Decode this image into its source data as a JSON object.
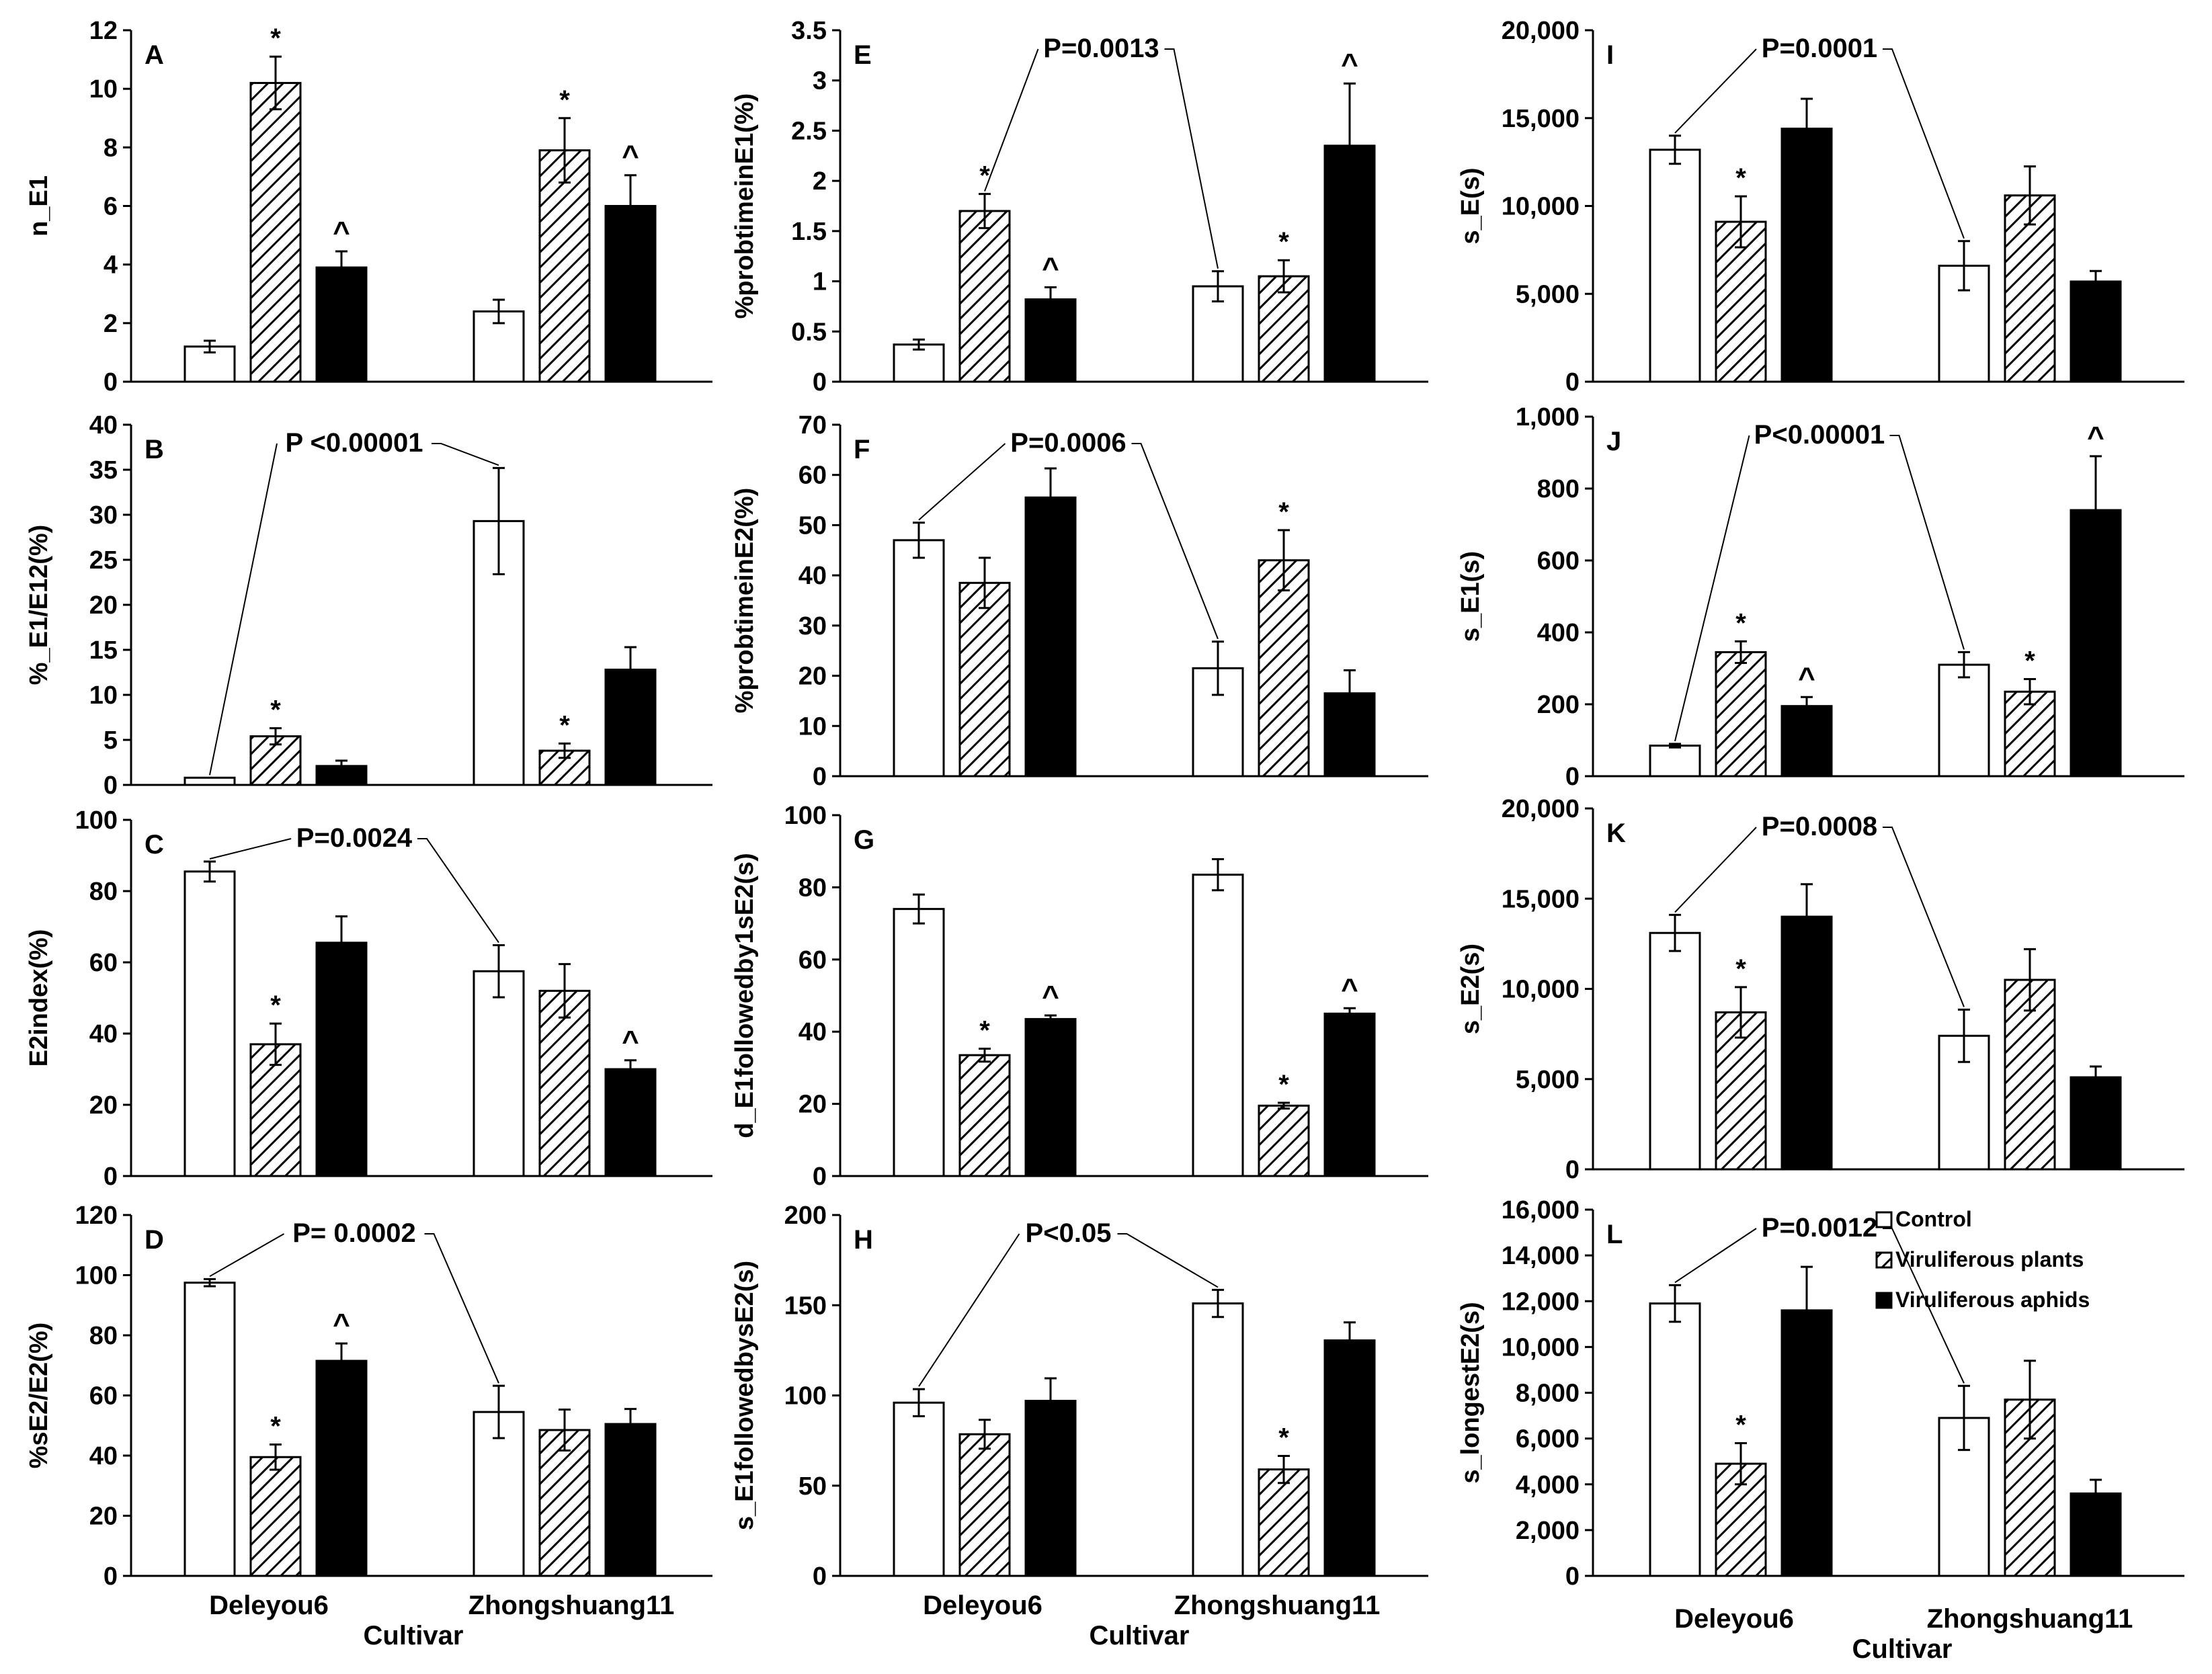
{
  "legend": {
    "items": [
      {
        "label": "Control",
        "style": "open"
      },
      {
        "label": "Viruliferous plants",
        "style": "hatched"
      },
      {
        "label": "Viruliferous aphids",
        "style": "solid"
      }
    ]
  },
  "shared": {
    "categories": [
      "Deleyou6",
      "Zhongshuang11"
    ],
    "xlabel": "Cultivar",
    "series": [
      "Control",
      "Viruliferous plants",
      "Viruliferous aphids"
    ]
  },
  "chart_data": [
    {
      "id": "A",
      "type": "bar",
      "panel_label": "A",
      "ylabel": "n_E1",
      "ylim": [
        0,
        12
      ],
      "yticks": [
        "0",
        "2",
        "4",
        "6",
        "8",
        "10",
        "12"
      ],
      "categories": [
        "Deleyou6",
        "Zhongshuang11"
      ],
      "series": [
        {
          "name": "Control",
          "values": [
            1.2,
            2.4
          ],
          "errors": [
            0.2,
            0.4
          ],
          "marks": [
            "",
            ""
          ]
        },
        {
          "name": "Viruliferous plants",
          "values": [
            10.2,
            7.9
          ],
          "errors": [
            0.9,
            1.1
          ],
          "marks": [
            "*",
            "*"
          ]
        },
        {
          "name": "Viruliferous aphids",
          "values": [
            3.9,
            6.0
          ],
          "errors": [
            0.55,
            1.05
          ],
          "marks": [
            "^",
            "^"
          ]
        }
      ],
      "pvalue": null
    },
    {
      "id": "B",
      "type": "bar",
      "panel_label": "B",
      "ylabel": "%_E1/E12(%)",
      "ylim": [
        0,
        40
      ],
      "yticks": [
        "0",
        "5",
        "10",
        "15",
        "20",
        "25",
        "30",
        "35",
        "40"
      ],
      "categories": [
        "Deleyou6",
        "Zhongshuang11"
      ],
      "series": [
        {
          "name": "Control",
          "values": [
            0.8,
            29.3
          ],
          "errors": [
            0,
            5.9
          ],
          "marks": [
            "",
            ""
          ]
        },
        {
          "name": "Viruliferous plants",
          "values": [
            5.4,
            3.8
          ],
          "errors": [
            0.9,
            0.8
          ],
          "marks": [
            "*",
            "*"
          ]
        },
        {
          "name": "Viruliferous aphids",
          "values": [
            2.1,
            12.8
          ],
          "errors": [
            0.6,
            2.5
          ],
          "marks": [
            "",
            ""
          ]
        }
      ],
      "pvalue": "P <0.00001"
    },
    {
      "id": "C",
      "type": "bar",
      "panel_label": "C",
      "ylabel": "E2index(%)",
      "ylim": [
        0,
        100
      ],
      "yticks": [
        "0",
        "20",
        "40",
        "60",
        "80",
        "100"
      ],
      "categories": [
        "Deleyou6",
        "Zhongshuang11"
      ],
      "series": [
        {
          "name": "Control",
          "values": [
            85.5,
            57.5
          ],
          "errors": [
            2.8,
            7.3
          ],
          "marks": [
            "",
            ""
          ]
        },
        {
          "name": "Viruliferous plants",
          "values": [
            37.0,
            52.0
          ],
          "errors": [
            5.8,
            7.5
          ],
          "marks": [
            "*",
            ""
          ]
        },
        {
          "name": "Viruliferous aphids",
          "values": [
            65.5,
            30.0
          ],
          "errors": [
            7.4,
            2.5
          ],
          "marks": [
            "",
            "^"
          ]
        }
      ],
      "pvalue": "P=0.0024"
    },
    {
      "id": "D",
      "type": "bar",
      "panel_label": "D",
      "ylabel": "%sE2/E2(%)",
      "ylim": [
        0,
        120
      ],
      "yticks": [
        "0",
        "20",
        "40",
        "60",
        "80",
        "100",
        "120"
      ],
      "categories": [
        "Deleyou6",
        "Zhongshuang11"
      ],
      "series": [
        {
          "name": "Control",
          "values": [
            97.5,
            54.5
          ],
          "errors": [
            1.2,
            8.7
          ],
          "marks": [
            "",
            ""
          ]
        },
        {
          "name": "Viruliferous plants",
          "values": [
            39.5,
            48.5
          ],
          "errors": [
            4.2,
            6.8
          ],
          "marks": [
            "*",
            ""
          ]
        },
        {
          "name": "Viruliferous aphids",
          "values": [
            71.5,
            50.5
          ],
          "errors": [
            5.8,
            5.0
          ],
          "marks": [
            "^",
            ""
          ]
        }
      ],
      "pvalue": "P= 0.0002"
    },
    {
      "id": "E",
      "type": "bar",
      "panel_label": "E",
      "ylabel": "%probtimeinE1(%)",
      "ylim": [
        0,
        3.5
      ],
      "yticks": [
        "0",
        "0.5",
        "1",
        "1.5",
        "2",
        "2.5",
        "3",
        "3.5"
      ],
      "categories": [
        "Deleyou6",
        "Zhongshuang11"
      ],
      "series": [
        {
          "name": "Control",
          "values": [
            0.37,
            0.95
          ],
          "errors": [
            0.05,
            0.15
          ],
          "marks": [
            "",
            ""
          ]
        },
        {
          "name": "Viruliferous plants",
          "values": [
            1.7,
            1.05
          ],
          "errors": [
            0.17,
            0.16
          ],
          "marks": [
            "*",
            "*"
          ]
        },
        {
          "name": "Viruliferous aphids",
          "values": [
            0.82,
            2.35
          ],
          "errors": [
            0.12,
            0.62
          ],
          "marks": [
            "^",
            "^"
          ]
        }
      ],
      "pvalue": "P=0.0013"
    },
    {
      "id": "F",
      "type": "bar",
      "panel_label": "F",
      "ylabel": "%probtimeinE2(%)",
      "ylim": [
        0,
        70
      ],
      "yticks": [
        "0",
        "10",
        "20",
        "30",
        "40",
        "50",
        "60",
        "70"
      ],
      "categories": [
        "Deleyou6",
        "Zhongshuang11"
      ],
      "series": [
        {
          "name": "Control",
          "values": [
            47.0,
            21.5
          ],
          "errors": [
            3.5,
            5.3
          ],
          "marks": [
            "",
            ""
          ]
        },
        {
          "name": "Viruliferous plants",
          "values": [
            38.5,
            43.0
          ],
          "errors": [
            5.0,
            6.0
          ],
          "marks": [
            "",
            "*"
          ]
        },
        {
          "name": "Viruliferous aphids",
          "values": [
            55.5,
            16.5
          ],
          "errors": [
            5.8,
            4.6
          ],
          "marks": [
            "",
            ""
          ]
        }
      ],
      "pvalue": "P=0.0006"
    },
    {
      "id": "G",
      "type": "bar",
      "panel_label": "G",
      "ylabel": "d_E1followedby1sE2(s)",
      "ylim": [
        0,
        100
      ],
      "yticks": [
        "0",
        "20",
        "40",
        "60",
        "80",
        "100"
      ],
      "categories": [
        "Deleyou6",
        "Zhongshuang11"
      ],
      "series": [
        {
          "name": "Control",
          "values": [
            74.0,
            83.5
          ],
          "errors": [
            4.0,
            4.3
          ],
          "marks": [
            "",
            ""
          ]
        },
        {
          "name": "Viruliferous plants",
          "values": [
            33.5,
            19.5
          ],
          "errors": [
            1.8,
            0.8
          ],
          "marks": [
            "*",
            "*"
          ]
        },
        {
          "name": "Viruliferous aphids",
          "values": [
            43.5,
            45.0
          ],
          "errors": [
            1.0,
            1.5
          ],
          "marks": [
            "^",
            "^"
          ]
        }
      ],
      "pvalue": null
    },
    {
      "id": "H",
      "type": "bar",
      "panel_label": "H",
      "ylabel": "s_E1followedbysE2(s)",
      "ylim": [
        0,
        200
      ],
      "yticks": [
        "0",
        "50",
        "100",
        "150",
        "200"
      ],
      "categories": [
        "Deleyou6",
        "Zhongshuang11"
      ],
      "series": [
        {
          "name": "Control",
          "values": [
            96.0,
            151.0
          ],
          "errors": [
            7.5,
            7.5
          ],
          "marks": [
            "",
            ""
          ]
        },
        {
          "name": "Viruliferous plants",
          "values": [
            78.5,
            59.0
          ],
          "errors": [
            8.0,
            7.5
          ],
          "marks": [
            "",
            "*"
          ]
        },
        {
          "name": "Viruliferous aphids",
          "values": [
            97.0,
            130.5
          ],
          "errors": [
            12.5,
            10.0
          ],
          "marks": [
            "",
            ""
          ]
        }
      ],
      "pvalue": "P<0.05"
    },
    {
      "id": "I",
      "type": "bar",
      "panel_label": "I",
      "ylabel": "s_E(s)",
      "ylim": [
        0,
        20000
      ],
      "yticks": [
        "0",
        "5,000",
        "10,000",
        "15,000",
        "20,000"
      ],
      "categories": [
        "Deleyou6",
        "Zhongshuang11"
      ],
      "series": [
        {
          "name": "Control",
          "values": [
            13200,
            6600
          ],
          "errors": [
            800,
            1400
          ],
          "marks": [
            "",
            ""
          ]
        },
        {
          "name": "Viruliferous plants",
          "values": [
            9100,
            10600
          ],
          "errors": [
            1450,
            1650
          ],
          "marks": [
            "*",
            ""
          ]
        },
        {
          "name": "Viruliferous aphids",
          "values": [
            14400,
            5700
          ],
          "errors": [
            1700,
            600
          ],
          "marks": [
            "",
            ""
          ]
        }
      ],
      "pvalue": "P=0.0001"
    },
    {
      "id": "J",
      "type": "bar",
      "panel_label": "J",
      "ylabel": "s_E1(s)",
      "ylim": [
        0,
        1000
      ],
      "yticks": [
        "0",
        "200",
        "400",
        "600",
        "800",
        "1,000"
      ],
      "categories": [
        "Deleyou6",
        "Zhongshuang11"
      ],
      "series": [
        {
          "name": "Control",
          "values": [
            85,
            310
          ],
          "errors": [
            5,
            35
          ],
          "marks": [
            "",
            ""
          ]
        },
        {
          "name": "Viruliferous plants",
          "values": [
            345,
            235
          ],
          "errors": [
            30,
            35
          ],
          "marks": [
            "*",
            "*"
          ]
        },
        {
          "name": "Viruliferous aphids",
          "values": [
            195,
            740
          ],
          "errors": [
            25,
            150
          ],
          "marks": [
            "^",
            "^"
          ]
        }
      ],
      "pvalue": "P<0.00001"
    },
    {
      "id": "K",
      "type": "bar",
      "panel_label": "K",
      "ylabel": "s_E2(s)",
      "ylim": [
        0,
        20000
      ],
      "yticks": [
        "0",
        "5,000",
        "10,000",
        "15,000",
        "20,000"
      ],
      "categories": [
        "Deleyou6",
        "Zhongshuang11"
      ],
      "series": [
        {
          "name": "Control",
          "values": [
            13100,
            7400
          ],
          "errors": [
            1000,
            1450
          ],
          "marks": [
            "",
            ""
          ]
        },
        {
          "name": "Viruliferous plants",
          "values": [
            8700,
            10500
          ],
          "errors": [
            1400,
            1700
          ],
          "marks": [
            "*",
            ""
          ]
        },
        {
          "name": "Viruliferous aphids",
          "values": [
            14000,
            5100
          ],
          "errors": [
            1800,
            600
          ],
          "marks": [
            "",
            ""
          ]
        }
      ],
      "pvalue": "P=0.0008"
    },
    {
      "id": "L",
      "type": "bar",
      "panel_label": "L",
      "ylabel": "s_longestE2(s)",
      "ylim": [
        0,
        16000
      ],
      "yticks": [
        "0",
        "2,000",
        "4,000",
        "6,000",
        "8,000",
        "10,000",
        "12,000",
        "14,000",
        "16,000"
      ],
      "categories": [
        "Deleyou6",
        "Zhongshuang11"
      ],
      "series": [
        {
          "name": "Control",
          "values": [
            11900,
            6900
          ],
          "errors": [
            800,
            1400
          ],
          "marks": [
            "",
            ""
          ]
        },
        {
          "name": "Viruliferous plants",
          "values": [
            4900,
            7700
          ],
          "errors": [
            900,
            1700
          ],
          "marks": [
            "*",
            ""
          ]
        },
        {
          "name": "Viruliferous aphids",
          "values": [
            11600,
            3600
          ],
          "errors": [
            1900,
            600
          ],
          "marks": [
            "",
            ""
          ]
        }
      ],
      "pvalue": "P=0.0012"
    }
  ]
}
